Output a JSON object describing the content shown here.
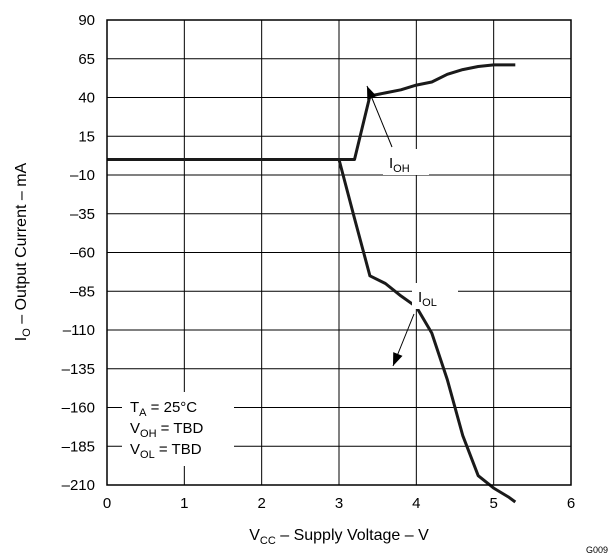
{
  "chart_data": {
    "type": "line",
    "title": "",
    "x_axis": {
      "label_main": "V",
      "label_sub": "CC",
      "label_rest": " – Supply Voltage – V",
      "ticks": [
        "0",
        "1",
        "2",
        "3",
        "4",
        "5",
        "6"
      ],
      "lim": [
        0,
        6
      ]
    },
    "y_axis": {
      "label_main": "I",
      "label_sub": "O",
      "label_rest": " – Output Current – mA",
      "ticks": [
        "90",
        "65",
        "40",
        "15",
        "–10",
        "–35",
        "–60",
        "–85",
        "–110",
        "–135",
        "–160",
        "–185",
        "–210"
      ],
      "lim": [
        -210,
        90
      ]
    },
    "grid": true,
    "series": [
      {
        "name_main": "I",
        "name_sub": "OH",
        "x": [
          0,
          3.0,
          3.2,
          3.4,
          3.6,
          3.8,
          4.0,
          4.2,
          4.4,
          4.6,
          4.8,
          5.0,
          5.2,
          5.28
        ],
        "y": [
          0,
          0,
          0,
          41,
          43,
          45,
          48,
          50,
          55,
          58,
          60,
          61,
          61,
          61
        ]
      },
      {
        "name_main": "I",
        "name_sub": "OL",
        "x": [
          0,
          3.0,
          3.2,
          3.4,
          3.6,
          3.8,
          4.0,
          4.2,
          4.4,
          4.6,
          4.8,
          5.0,
          5.2,
          5.28
        ],
        "y": [
          0,
          0,
          -38,
          -75,
          -80,
          -88,
          -95,
          -112,
          -142,
          -178,
          -204,
          -212,
          -218,
          -221
        ]
      }
    ],
    "annotations": {
      "conditions": [
        {
          "main": "T",
          "sub": "A",
          "rest": " = 25°C"
        },
        {
          "main": "V",
          "sub": "OH",
          "rest": " = TBD"
        },
        {
          "main": "V",
          "sub": "OL",
          "rest": " = TBD"
        }
      ]
    },
    "figure_code": "G009"
  }
}
